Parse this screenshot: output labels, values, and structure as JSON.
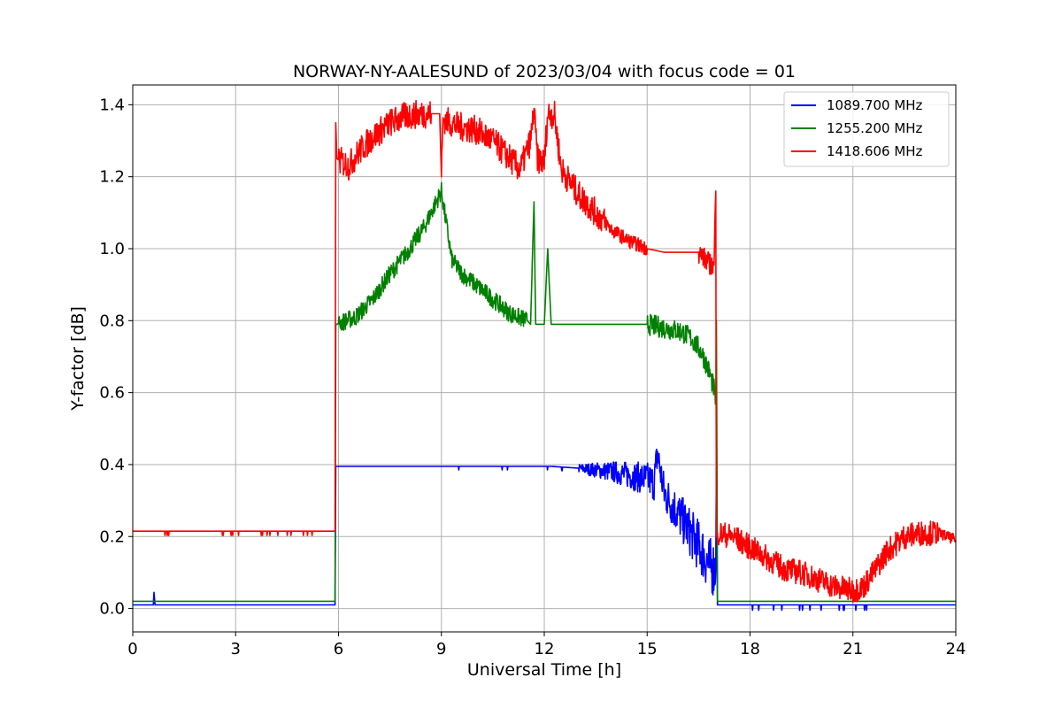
{
  "chart_data": {
    "type": "line",
    "title": "NORWAY-NY-AALESUND of 2023/03/04 with focus code = 01",
    "xlabel": "Universal Time [h]",
    "ylabel": "Y-factor [dB]",
    "xlim": [
      0,
      24
    ],
    "ylim": [
      -0.065,
      1.455
    ],
    "xticks": [
      0,
      3,
      6,
      9,
      12,
      15,
      18,
      21,
      24
    ],
    "yticks": [
      0.0,
      0.2,
      0.4,
      0.6,
      0.8,
      1.0,
      1.2,
      1.4
    ],
    "xtick_labels": [
      "0",
      "3",
      "6",
      "9",
      "12",
      "15",
      "18",
      "21",
      "24"
    ],
    "ytick_labels": [
      "0.0",
      "0.2",
      "0.4",
      "0.6",
      "0.8",
      "1.0",
      "1.2",
      "1.4"
    ],
    "grid": true,
    "legend_position": "top-right",
    "series": [
      {
        "name": "1089.700 MHz",
        "color": "#0000ff",
        "x": [
          0,
          0.6,
          0.62,
          0.65,
          1.0,
          2.0,
          3.0,
          4.0,
          5.0,
          5.9,
          5.92,
          5.95,
          7.0,
          8.0,
          9.0,
          10.0,
          11.0,
          12.0,
          12.2,
          13.0,
          13.5,
          14.0,
          14.5,
          15.0,
          15.2,
          15.3,
          15.5,
          15.8,
          16.0,
          16.2,
          16.4,
          16.6,
          16.8,
          17.0,
          17.02,
          17.05,
          18.0,
          19.0,
          20.0,
          21.0,
          22.0,
          23.0,
          24.0
        ],
        "y": [
          0.01,
          0.01,
          0.045,
          0.01,
          0.01,
          0.01,
          0.01,
          0.01,
          0.01,
          0.01,
          0.395,
          0.395,
          0.395,
          0.395,
          0.395,
          0.395,
          0.395,
          0.395,
          0.395,
          0.39,
          0.385,
          0.38,
          0.37,
          0.36,
          0.35,
          0.43,
          0.32,
          0.28,
          0.25,
          0.22,
          0.19,
          0.16,
          0.12,
          0.11,
          0.39,
          0.01,
          0.01,
          0.01,
          0.01,
          0.01,
          0.01,
          0.01,
          0.01
        ]
      },
      {
        "name": "1255.200 MHz",
        "color": "#008000",
        "x": [
          0,
          1.0,
          2.0,
          3.0,
          4.0,
          5.0,
          5.9,
          5.92,
          5.95,
          6.5,
          7.0,
          7.5,
          8.0,
          8.5,
          8.8,
          9.0,
          9.3,
          9.6,
          10.0,
          10.5,
          11.0,
          11.5,
          11.6,
          11.7,
          11.75,
          11.8,
          12.0,
          12.1,
          12.2,
          12.3,
          12.5,
          13.0,
          14.0,
          15.0,
          15.5,
          16.0,
          16.3,
          16.6,
          16.8,
          16.95,
          17.0,
          17.02,
          17.05,
          18.0,
          19.0,
          20.0,
          21.0,
          22.0,
          23.0,
          24.0
        ],
        "y": [
          0.02,
          0.02,
          0.02,
          0.02,
          0.02,
          0.02,
          0.02,
          0.79,
          0.79,
          0.81,
          0.86,
          0.93,
          0.99,
          1.06,
          1.12,
          1.16,
          0.97,
          0.93,
          0.9,
          0.86,
          0.82,
          0.8,
          0.79,
          1.13,
          0.79,
          0.79,
          0.79,
          1.0,
          0.79,
          0.79,
          0.79,
          0.79,
          0.79,
          0.79,
          0.78,
          0.77,
          0.75,
          0.71,
          0.66,
          0.61,
          0.57,
          0.8,
          0.02,
          0.02,
          0.02,
          0.02,
          0.02,
          0.02,
          0.02,
          0.02
        ]
      },
      {
        "name": "1418.606 MHz",
        "color": "#ff0000",
        "x": [
          0,
          1.0,
          2.0,
          3.0,
          4.0,
          5.0,
          5.9,
          5.92,
          5.95,
          6.3,
          6.6,
          7.0,
          7.5,
          8.0,
          8.5,
          8.95,
          9.0,
          9.05,
          9.5,
          10.0,
          10.5,
          11.0,
          11.3,
          11.6,
          11.7,
          11.8,
          12.0,
          12.1,
          12.2,
          12.3,
          12.5,
          13.0,
          13.5,
          14.0,
          14.5,
          15.0,
          15.5,
          16.0,
          16.5,
          16.8,
          16.95,
          17.0,
          17.02,
          17.05,
          17.5,
          18.0,
          18.5,
          19.0,
          19.5,
          20.0,
          20.5,
          21.0,
          21.3,
          21.6,
          22.0,
          22.5,
          23.0,
          23.5,
          24.0
        ],
        "y": [
          0.215,
          0.215,
          0.215,
          0.215,
          0.215,
          0.215,
          0.215,
          1.35,
          1.25,
          1.23,
          1.27,
          1.31,
          1.35,
          1.37,
          1.375,
          1.375,
          1.2,
          1.36,
          1.34,
          1.33,
          1.3,
          1.25,
          1.22,
          1.3,
          1.385,
          1.25,
          1.24,
          1.375,
          1.375,
          1.37,
          1.22,
          1.15,
          1.1,
          1.05,
          1.02,
          1.0,
          0.99,
          0.99,
          0.99,
          0.96,
          0.95,
          1.16,
          0.2,
          0.21,
          0.2,
          0.17,
          0.14,
          0.11,
          0.1,
          0.08,
          0.06,
          0.05,
          0.06,
          0.1,
          0.16,
          0.2,
          0.21,
          0.21,
          0.19
        ]
      }
    ]
  }
}
